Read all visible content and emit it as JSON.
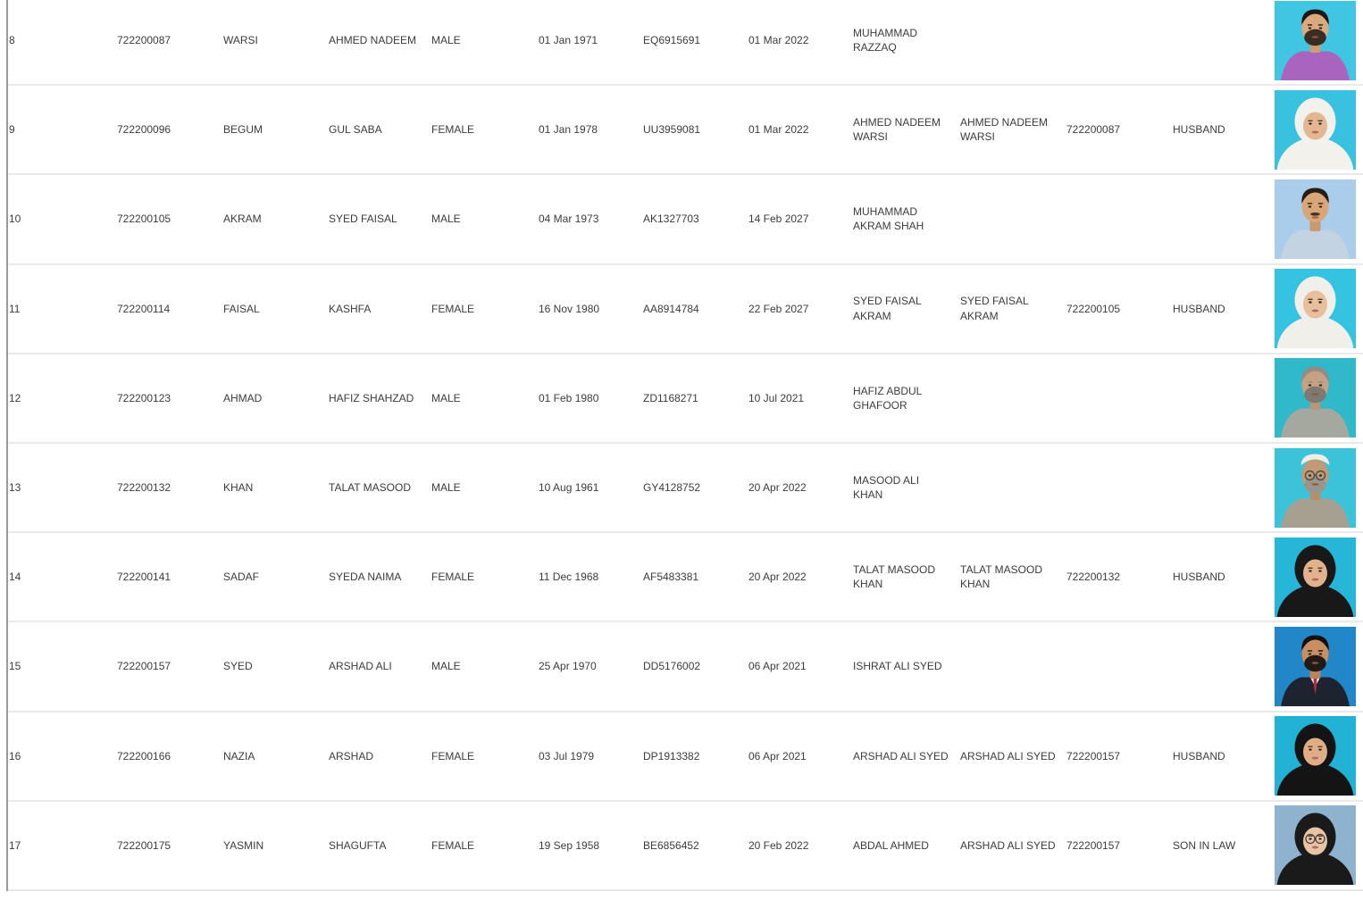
{
  "theme": {
    "bg": "#ffffff",
    "text": "#3c3c3c",
    "divider": "#e9e9e9",
    "table-border": "#9a9a9a"
  },
  "table": {
    "rows": [
      {
        "no": "8",
        "file_no": "722200087",
        "surname": "WARSI",
        "given_name": "AHMED NADEEM",
        "gender": "MALE",
        "date_of_birth": "01 Jan 1971",
        "passport_no": "EQ6915691",
        "expiry_date": "01 Mar 2022",
        "guardian_name": "MUHAMMAD\nRAZZAQ",
        "relative_name": "",
        "relative_file_no": "",
        "relationship": "",
        "photo": {
          "alt": "man with black hair and dark beard in purple shirt on cyan background",
          "bg": "#40c6e2",
          "type": "man",
          "headwear": "hair",
          "hair_color": "#1c1814",
          "facial_hair": "beard",
          "facial_hair_color": "#3a2c20",
          "shirt_color": "#a964bf",
          "skin": "#dba97e"
        }
      },
      {
        "no": "9",
        "file_no": "722200096",
        "surname": "BEGUM",
        "given_name": "GUL SABA",
        "gender": "FEMALE",
        "date_of_birth": "01 Jan 1978",
        "passport_no": "UU3959081",
        "expiry_date": "01 Mar 2022",
        "guardian_name": "AHMED NADEEM\nWARSI",
        "relative_name": "AHMED NADEEM\nWARSI",
        "relative_file_no": "722200087",
        "relationship": "HUSBAND",
        "photo": {
          "alt": "woman in white hijab on cyan background",
          "bg": "#38c2e0",
          "type": "woman",
          "headwear": "white-hijab",
          "headwear_color": "#f3f1ec",
          "skin": "#e3b792",
          "glasses": false
        }
      },
      {
        "no": "10",
        "file_no": "722200105",
        "surname": "AKRAM",
        "given_name": "SYED FAISAL",
        "gender": "MALE",
        "date_of_birth": "04 Mar 1973",
        "passport_no": "AK1327703",
        "expiry_date": "14 Feb 2027",
        "guardian_name": "MUHAMMAD\nAKRAM SHAH",
        "relative_name": "",
        "relative_file_no": "",
        "relationship": "",
        "photo": {
          "alt": "man with black hair and mustache in pale blue shirt on light blue background",
          "bg": "#a9cdea",
          "type": "man",
          "headwear": "hair",
          "hair_color": "#241d18",
          "facial_hair": "mustache",
          "facial_hair_color": "#4a3326",
          "shirt_color": "#c3d3e2",
          "skin": "#d9a678"
        }
      },
      {
        "no": "11",
        "file_no": "722200114",
        "surname": "FAISAL",
        "given_name": "KASHFA",
        "gender": "FEMALE",
        "date_of_birth": "16 Nov 1980",
        "passport_no": "AA8914784",
        "expiry_date": "22 Feb 2027",
        "guardian_name": "SYED FAISAL\nAKRAM",
        "relative_name": "SYED FAISAL\nAKRAM",
        "relative_file_no": "722200105",
        "relationship": "HUSBAND",
        "photo": {
          "alt": "woman in white hijab on cyan background",
          "bg": "#34c4e2",
          "type": "woman",
          "headwear": "white-hijab",
          "headwear_color": "#f1efe9",
          "skin": "#e6c09c",
          "glasses": false
        }
      },
      {
        "no": "12",
        "file_no": "722200123",
        "surname": "AHMAD",
        "given_name": "HAFIZ SHAHZAD",
        "gender": "MALE",
        "date_of_birth": "01 Feb 1980",
        "passport_no": "ZD1168271",
        "expiry_date": "10 Jul 2021",
        "guardian_name": "HAFIZ ABDUL\nGHAFOOR",
        "relative_name": "",
        "relative_file_no": "",
        "relationship": "",
        "photo": {
          "alt": "man with gray hair and gray beard in gray shirt on teal background",
          "bg": "#2fb9c9",
          "type": "man",
          "headwear": "hair",
          "hair_color": "#8f8d86",
          "facial_hair": "beard",
          "facial_hair_color": "#7e7a72",
          "shirt_color": "#a4a89f",
          "skin": "#c7a183"
        }
      },
      {
        "no": "13",
        "file_no": "722200132",
        "surname": "KHAN",
        "given_name": "TALAT MASOOD",
        "gender": "MALE",
        "date_of_birth": "10 Aug 1961",
        "passport_no": "GY4128752",
        "expiry_date": "20 Apr 2022",
        "guardian_name": "MASOOD ALI\nKHAN",
        "relative_name": "",
        "relative_file_no": "",
        "relationship": "",
        "photo": {
          "alt": "elderly man with white cap, glasses and gray beard on cyan background",
          "bg": "#3cc3d9",
          "type": "man",
          "headwear": "white-cap",
          "headwear_color": "#f0ede4",
          "hair_color": "#9a958b",
          "facial_hair": "beard",
          "facial_hair_color": "#9a958b",
          "shirt_color": "#a79f90",
          "skin": "#c39a76",
          "glasses": true
        }
      },
      {
        "no": "14",
        "file_no": "722200141",
        "surname": "SADAF",
        "given_name": "SYEDA NAIMA",
        "gender": "FEMALE",
        "date_of_birth": "11 Dec 1968",
        "passport_no": "AF5483381",
        "expiry_date": "20 Apr 2022",
        "guardian_name": "TALAT MASOOD\nKHAN",
        "relative_name": "TALAT MASOOD\nKHAN",
        "relative_file_no": "722200132",
        "relationship": "HUSBAND",
        "photo": {
          "alt": "woman in black hijab on cyan background",
          "bg": "#25b6d8",
          "type": "woman",
          "headwear": "black-hijab",
          "headwear_color": "#181818",
          "skin": "#e2b28c",
          "glasses": false
        }
      },
      {
        "no": "15",
        "file_no": "722200157",
        "surname": "SYED",
        "given_name": "ARSHAD ALI",
        "gender": "MALE",
        "date_of_birth": "25 Apr 1970",
        "passport_no": "DD5176002",
        "expiry_date": "06 Apr 2021",
        "guardian_name": "ISHRAT ALI SYED",
        "relative_name": "",
        "relative_file_no": "",
        "relationship": "",
        "photo": {
          "alt": "man with black hair and beard in dark suit with red tie on blue background",
          "bg": "#2287c9",
          "type": "man",
          "headwear": "hair",
          "hair_color": "#14100e",
          "facial_hair": "beard",
          "facial_hair_color": "#221a14",
          "shirt_color": "#1d2430",
          "tie_color": "#b8293d",
          "skin": "#c98e62"
        }
      },
      {
        "no": "16",
        "file_no": "722200166",
        "surname": "NAZIA",
        "given_name": "ARSHAD",
        "gender": "FEMALE",
        "date_of_birth": "03 Jul 1979",
        "passport_no": "DP1913382",
        "expiry_date": "06 Apr 2021",
        "guardian_name": "ARSHAD ALI SYED",
        "relative_name": "ARSHAD ALI SYED",
        "relative_file_no": "722200157",
        "relationship": "HUSBAND",
        "photo": {
          "alt": "woman in black hijab on cyan background",
          "bg": "#22b2d6",
          "type": "woman",
          "headwear": "black-hijab",
          "headwear_color": "#141414",
          "skin": "#e0ae86",
          "glasses": false
        }
      },
      {
        "no": "17",
        "file_no": "722200175",
        "surname": "YASMIN",
        "given_name": "SHAGUFTA",
        "gender": "FEMALE",
        "date_of_birth": "19 Sep 1958",
        "passport_no": "BE6856452",
        "expiry_date": "20 Feb 2022",
        "guardian_name": "ABDAL AHMED",
        "relative_name": "ARSHAD ALI SYED",
        "relative_file_no": "722200157",
        "relationship": "SON IN LAW",
        "photo": {
          "alt": "older woman in black hijab with glasses on light blue background",
          "bg": "#8fb3cf",
          "type": "woman",
          "headwear": "black-hijab",
          "headwear_color": "#1a1a1a",
          "skin": "#e8c4a4",
          "glasses": true
        }
      }
    ]
  }
}
